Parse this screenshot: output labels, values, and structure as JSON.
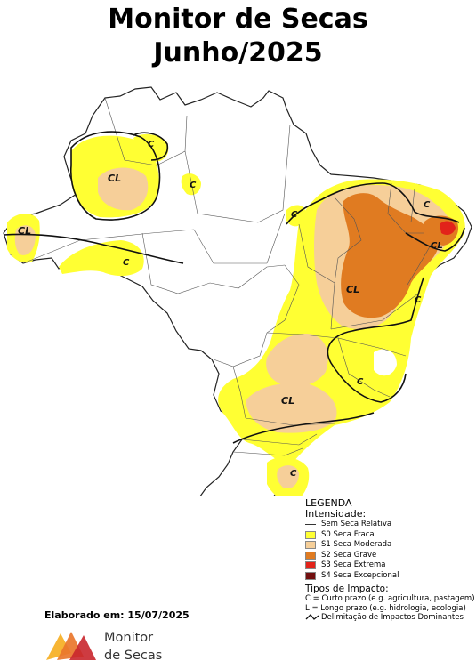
{
  "title": {
    "line1": "Monitor de Secas",
    "line2": "Junho/2025"
  },
  "map_labels": {
    "cl_amazonas": "CL",
    "c_roraima": "C",
    "cl_acre": "CL",
    "c_rondonia": "C",
    "c_amapa_sul": "C",
    "c_para": "C",
    "c_ceara": "C",
    "cl_rn_pb": "CL",
    "cl_bahia": "CL",
    "c_litoral_ba": "C",
    "c_minas": "C",
    "cl_sao_paulo": "CL",
    "c_rio_grande_sul": "C"
  },
  "legend": {
    "title": "LEGENDA",
    "intensity_title": "Intensidade:",
    "items": [
      {
        "label": "Sem Seca Relativa",
        "color": "#ffffff"
      },
      {
        "label": "S0 Seca Fraca",
        "color": "#ffff33"
      },
      {
        "label": "S1 Seca Moderada",
        "color": "#f6cf99"
      },
      {
        "label": "S2 Seca Grave",
        "color": "#e07b21"
      },
      {
        "label": "S3 Seca Extrema",
        "color": "#e2231a"
      },
      {
        "label": "S4 Seca Excepcional",
        "color": "#720f0f"
      }
    ],
    "impact_title": "Tipos de Impacto:",
    "impact_short": "C = Curto prazo (e.g. agricultura, pastagem)",
    "impact_long": "L = Longo prazo (e.g. hidrologia, ecologia)",
    "delimitation": "Delimitação de Impactos Dominantes"
  },
  "footer": {
    "elaborated": "Elaborado em: 15/07/2025",
    "logo_line1": "Monitor",
    "logo_line2": "de Secas"
  },
  "colors": {
    "s0": "#ffff33",
    "s1": "#f6cf99",
    "s2": "#e07b21",
    "s3": "#e2231a",
    "s4": "#720f0f",
    "border": "#222222"
  }
}
